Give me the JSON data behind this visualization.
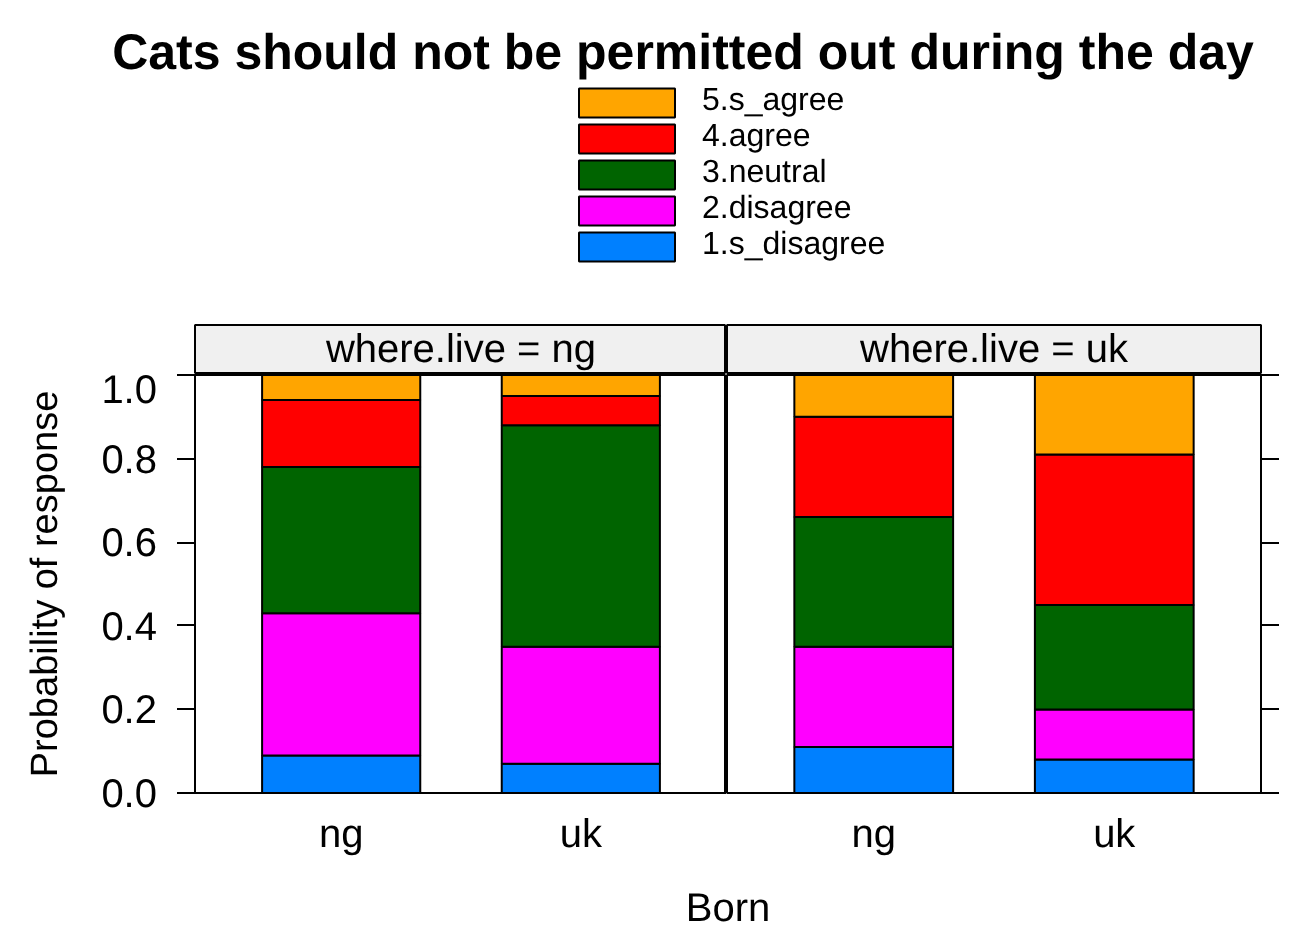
{
  "chart_data": [
    {
      "type": "bar",
      "title": "Cats should not be permitted out during the day",
      "subtitle": "where.live = ng",
      "xlabel": "Born",
      "ylabel": "Probability of response",
      "categories": [
        "ng",
        "uk"
      ],
      "stacked": true,
      "legend": "top",
      "series": [
        {
          "name": "1.s_disagree",
          "color": "#0080ff",
          "values": [
            0.09,
            0.07
          ]
        },
        {
          "name": "2.disagree",
          "color": "#ff00ff",
          "values": [
            0.34,
            0.28
          ]
        },
        {
          "name": "3.neutral",
          "color": "#006400",
          "values": [
            0.35,
            0.53
          ]
        },
        {
          "name": "4.agree",
          "color": "#ff0000",
          "values": [
            0.16,
            0.07
          ]
        },
        {
          "name": "5.s_agree",
          "color": "#ffa500",
          "values": [
            0.06,
            0.05
          ]
        }
      ],
      "ylim": [
        0,
        1
      ],
      "yticks": [
        {
          "value": 0,
          "label": "0.0"
        },
        0.2,
        0.4,
        0.6,
        0.8,
        {
          "value": 1,
          "label": "1.0"
        }
      ]
    },
    {
      "type": "bar",
      "subtitle": "where.live = uk",
      "categories": [
        "ng",
        "uk"
      ],
      "stacked": true,
      "tick_labels": "x",
      "series": [
        {
          "color": "#0080ff",
          "values": [
            0.11,
            0.08
          ]
        },
        {
          "color": "#ff00ff",
          "values": [
            0.24,
            0.12
          ]
        },
        {
          "color": "#006400",
          "values": [
            0.31,
            0.25
          ]
        },
        {
          "color": "#ff0000",
          "values": [
            0.24,
            0.36
          ]
        },
        {
          "color": "#ffa500",
          "values": [
            0.1,
            0.19
          ]
        }
      ],
      "ylim": [
        0,
        1
      ],
      "yticks": [
        0,
        0.2,
        0.4,
        0.6,
        0.8,
        1
      ]
    }
  ]
}
